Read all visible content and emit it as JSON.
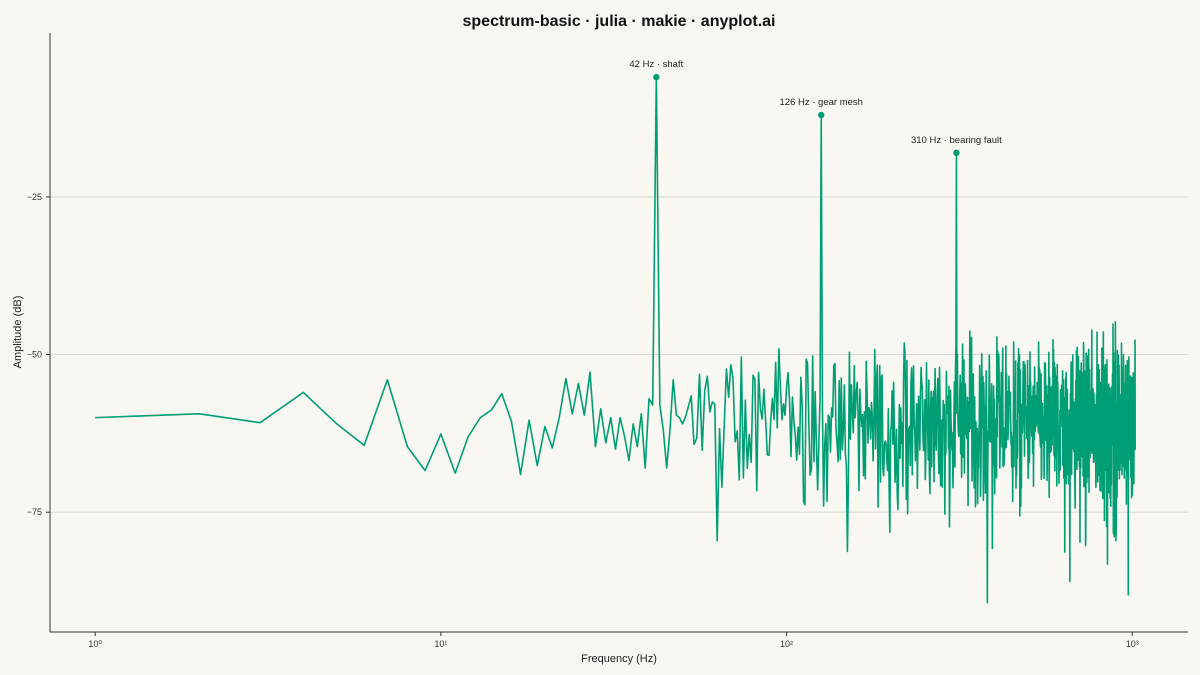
{
  "chart_data": {
    "type": "line",
    "title": "spectrum-basic · julia · makie · anyplot.ai",
    "xlabel": "Frequency (Hz)",
    "ylabel": "Amplitude (dB)",
    "xscale": "log",
    "xlim": [
      0.74,
      1450
    ],
    "ylim": [
      -94,
      1
    ],
    "x_ticks": [
      {
        "value": 1,
        "label": "10⁰"
      },
      {
        "value": 10,
        "label": "10¹"
      },
      {
        "value": 100,
        "label": "10²"
      },
      {
        "value": 1000,
        "label": "10³"
      }
    ],
    "y_ticks": [
      {
        "value": -25,
        "label": "−25"
      },
      {
        "value": -50,
        "label": "−50"
      },
      {
        "value": -75,
        "label": "−75"
      }
    ],
    "grid": "horizontal",
    "colors": {
      "series": "#009e73",
      "background": "#f9f7f1"
    },
    "series": [
      {
        "x": [
          1,
          2,
          3,
          4,
          5,
          6,
          7,
          8,
          9,
          10,
          11,
          12,
          13,
          14,
          15,
          16,
          17,
          18,
          19,
          20,
          21,
          22,
          23,
          24,
          25,
          26,
          27,
          28,
          29,
          30,
          31,
          32,
          33,
          34,
          35,
          36,
          37,
          38,
          39,
          40,
          41,
          42,
          43,
          44,
          45,
          46,
          47,
          48,
          49,
          50
        ],
        "y": [
          -60,
          -59.4,
          -60.8,
          -56,
          -61,
          -64.4,
          -54,
          -64.6,
          -68.4,
          -62.6,
          -68.8,
          -63,
          -60,
          -58.8,
          -56.2,
          -60.6,
          -69,
          -60.4,
          -67.6,
          -61.4,
          -64.8,
          -60,
          -53.8,
          -59.4,
          -54.6,
          -59.6,
          -52.8,
          -64.6,
          -58.6,
          -64,
          -60,
          -65,
          -60,
          -63,
          -66.8,
          -61,
          -64.6,
          -59.4,
          -68,
          -57,
          -58,
          -6,
          -58,
          -62,
          -68,
          -62,
          -54,
          -59.6,
          -60,
          -61
        ]
      }
    ],
    "dense_noise": {
      "from_hz": 50,
      "to_hz": 1020,
      "mean_db": -61,
      "spread_db": 8
    },
    "peaks": [
      {
        "x": 42,
        "y": -6,
        "label": "42 Hz · shaft"
      },
      {
        "x": 126,
        "y": -12,
        "label": "126 Hz · gear mesh"
      },
      {
        "x": 310,
        "y": -18,
        "label": "310 Hz · bearing fault"
      }
    ]
  }
}
